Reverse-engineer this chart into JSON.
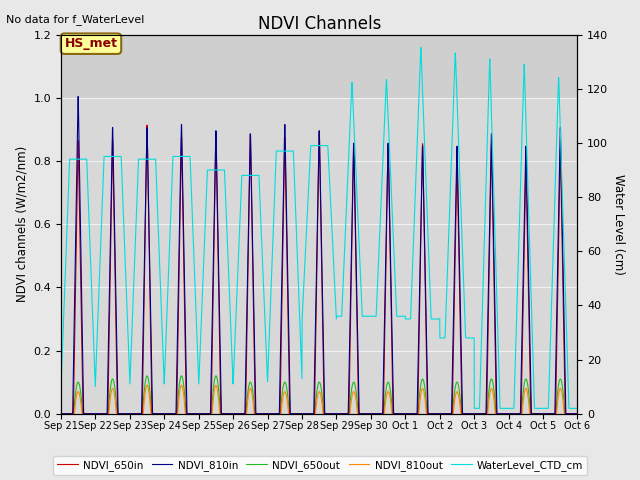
{
  "title": "NDVI Channels",
  "ylabel_left": "NDVI channels (W/m2/nm)",
  "ylabel_right": "Water Level (cm)",
  "ylim_left": [
    0,
    1.2
  ],
  "ylim_right": [
    0,
    140
  ],
  "annotation_text": "No data for f_WaterLevel",
  "annotation_box": "HS_met",
  "fig_facecolor": "#e8e8e8",
  "plot_facecolor": "#d8d8d8",
  "xtick_labels": [
    "Sep 21",
    "Sep 22",
    "Sep 23",
    "Sep 24",
    "Sep 25",
    "Sep 26",
    "Sep 27",
    "Sep 28",
    "Sep 29",
    "Sep 30",
    "Oct 1",
    "Oct 2",
    "Oct 3",
    "Oct 4",
    "Oct 5",
    "Oct 6"
  ],
  "ndvi_650in_color": "#cc0000",
  "ndvi_810in_color": "#00008b",
  "ndvi_650out_color": "#22bb22",
  "ndvi_810out_color": "#ff8800",
  "water_color": "#00dddd",
  "ndvi_650in_peaks": [
    0.88,
    0.88,
    0.93,
    0.89,
    0.89,
    0.9,
    0.89,
    0.91,
    0.87,
    0.87,
    0.87,
    0.81,
    0.87,
    0.8,
    0.85
  ],
  "ndvi_810in_peaks": [
    1.02,
    0.92,
    0.92,
    0.93,
    0.91,
    0.9,
    0.93,
    0.91,
    0.87,
    0.87,
    0.86,
    0.86,
    0.9,
    0.86,
    0.92
  ],
  "ndvi_650out_peaks": [
    0.1,
    0.11,
    0.12,
    0.12,
    0.12,
    0.1,
    0.1,
    0.1,
    0.1,
    0.1,
    0.11,
    0.1,
    0.11,
    0.11,
    0.11
  ],
  "ndvi_810out_peaks": [
    0.07,
    0.08,
    0.09,
    0.09,
    0.09,
    0.08,
    0.07,
    0.07,
    0.07,
    0.07,
    0.08,
    0.07,
    0.08,
    0.08,
    0.08
  ],
  "water_peaks": [
    94,
    95,
    94,
    95,
    90,
    88,
    97,
    99,
    123,
    124,
    136,
    134,
    132,
    130,
    125
  ],
  "water_lows": [
    10,
    12,
    11,
    12,
    11,
    12,
    13,
    35,
    36,
    36,
    35,
    28,
    2,
    2,
    2
  ]
}
